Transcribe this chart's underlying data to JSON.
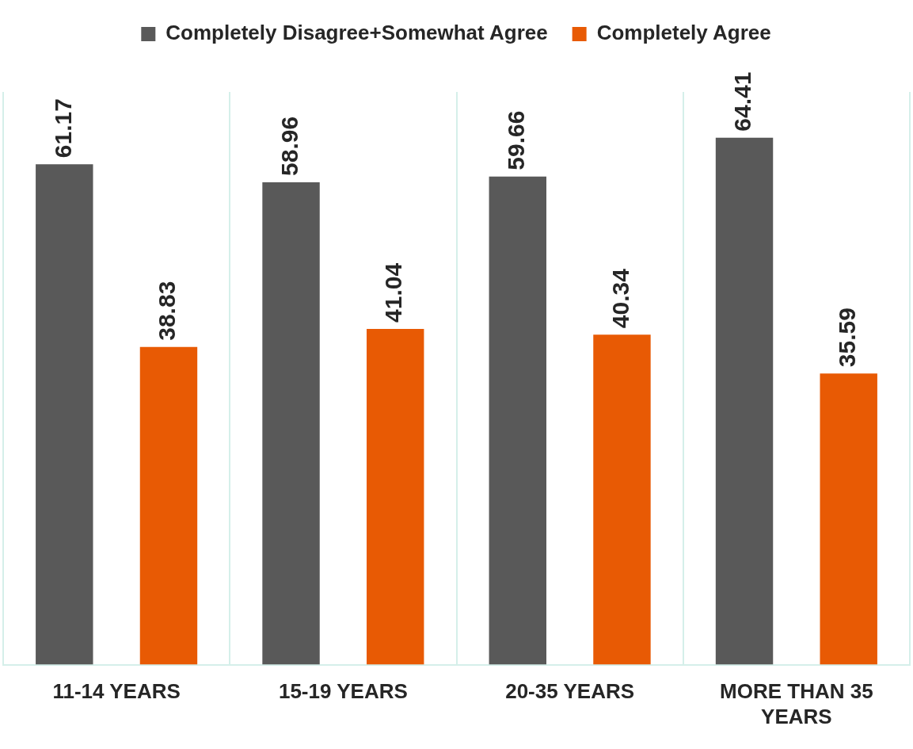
{
  "chart_data": {
    "type": "bar",
    "categories": [
      "11-14 YEARS",
      "15-19 YEARS",
      "20-35 YEARS",
      "MORE THAN 35 YEARS"
    ],
    "series": [
      {
        "name": "Completely Disagree+Somewhat Agree",
        "color": "#595959",
        "values": [
          61.17,
          58.96,
          59.66,
          64.41
        ]
      },
      {
        "name": "Completely Agree",
        "color": "#e85a04",
        "values": [
          38.83,
          41.04,
          40.34,
          35.59
        ]
      }
    ],
    "data_labels": true,
    "grid": "x",
    "legend": "top"
  }
}
